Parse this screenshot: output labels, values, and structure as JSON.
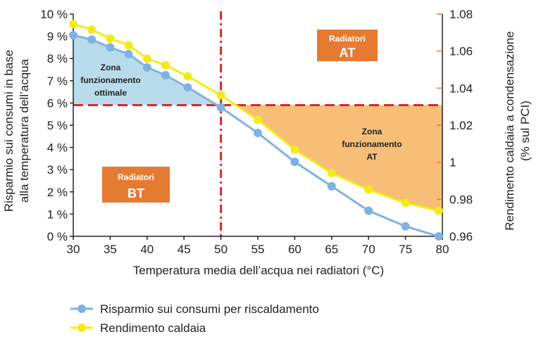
{
  "chart_data": {
    "type": "line",
    "xlabel": "Temperatura media dell’acqua nei radiatori (°C)",
    "ylabel_left_line1": "Risparmio sui consumi in base",
    "ylabel_left_line2": "alla temperatura dell’acqua",
    "ylabel_right_line1": "Rendimento caldaia a condensazione",
    "ylabel_right_line2": "(% sul PCI)",
    "xlim": [
      30,
      80
    ],
    "ylim_left": [
      0,
      10
    ],
    "ylim_right": [
      0.96,
      1.08
    ],
    "x_ticks": [
      "30",
      "35",
      "40",
      "45",
      "50",
      "55",
      "60",
      "65",
      "70",
      "75",
      "80"
    ],
    "y_left_ticks": [
      "0 %",
      "1 %",
      "2 %",
      "3 %",
      "4 %",
      "5 %",
      "6 %",
      "7 %",
      "8 %",
      "9 %",
      "10 %"
    ],
    "y_right_ticks": [
      "0.96",
      "0.98",
      "1",
      "1.02",
      "1.04",
      "1.06",
      "1.08"
    ],
    "y_right_tick_values": [
      0.96,
      0.98,
      1.0,
      1.02,
      1.04,
      1.06,
      1.08
    ],
    "threshold_x": 50,
    "threshold_y": 5.9,
    "series": [
      {
        "name": "Risparmio sui consumi per riscaldamento",
        "axis": "left",
        "color": "#7fb2e2",
        "x": [
          30,
          32.5,
          35,
          37.5,
          40,
          42.5,
          45.5,
          50,
          55,
          60,
          65,
          70,
          75,
          79.5
        ],
        "y": [
          9.05,
          8.85,
          8.5,
          8.2,
          7.6,
          7.25,
          6.7,
          5.8,
          4.65,
          3.35,
          2.25,
          1.15,
          0.45,
          0.0
        ]
      },
      {
        "name": "Rendimento caldaia",
        "axis": "left",
        "color": "#f4ea1a",
        "x": [
          30,
          32.5,
          35,
          37.5,
          40,
          42.5,
          45.5,
          50,
          55,
          60,
          65,
          70,
          75,
          79.5
        ],
        "y": [
          9.55,
          9.3,
          8.9,
          8.6,
          8.0,
          7.7,
          7.2,
          6.35,
          5.25,
          3.9,
          2.85,
          2.1,
          1.5,
          1.15
        ]
      }
    ],
    "zones": {
      "bt_optimal": [
        "Zona",
        "funzionamento",
        "ottimale"
      ],
      "at": [
        "Zona",
        "funzionamento",
        "AT"
      ]
    },
    "badges": {
      "at": {
        "small": "Radiatori",
        "big": "AT"
      },
      "bt": {
        "small": "Radiatori",
        "big": "BT"
      }
    },
    "colors": {
      "zone_bt": "#b9dcec",
      "zone_at": "#f7be78",
      "badge": "#e57a33",
      "threshold": "#d62a2a",
      "right_tick": "#e57a33"
    }
  }
}
